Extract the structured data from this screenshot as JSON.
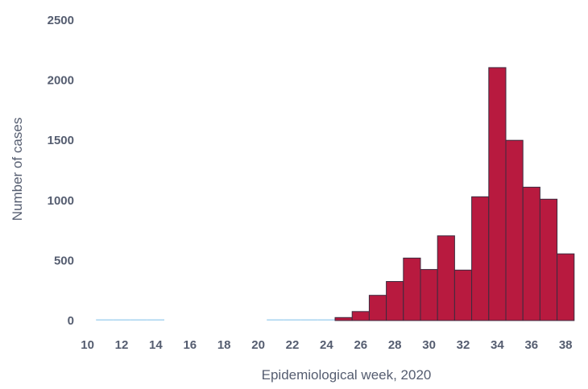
{
  "chart_data": {
    "type": "bar",
    "title": "",
    "xlabel": "Epidemiological week, 2020",
    "ylabel": "Number of cases",
    "ylim": [
      0,
      2500
    ],
    "yticks": [
      0,
      500,
      1000,
      1500,
      2000,
      2500
    ],
    "xticks": [
      10,
      12,
      14,
      16,
      18,
      20,
      22,
      24,
      26,
      28,
      30,
      32,
      34,
      36,
      38
    ],
    "grid": false,
    "legend": "none",
    "weeks": [
      10,
      11,
      12,
      13,
      14,
      15,
      16,
      17,
      18,
      19,
      20,
      21,
      22,
      23,
      24,
      25,
      26,
      27,
      28,
      29,
      30,
      31,
      32,
      33,
      34,
      35,
      36,
      37,
      38
    ],
    "values": [
      0,
      2,
      5,
      10,
      4,
      0,
      0,
      0,
      0,
      0,
      0,
      3,
      3,
      4,
      3,
      25,
      75,
      210,
      325,
      520,
      425,
      705,
      420,
      1030,
      2105,
      1500,
      1110,
      1010,
      555
    ],
    "colors": {
      "bar_fill": "#b81a3f",
      "bar_stroke": "#3d2b3f",
      "low_bar_fill": "#a8d4f0",
      "text": "#555d70"
    }
  }
}
